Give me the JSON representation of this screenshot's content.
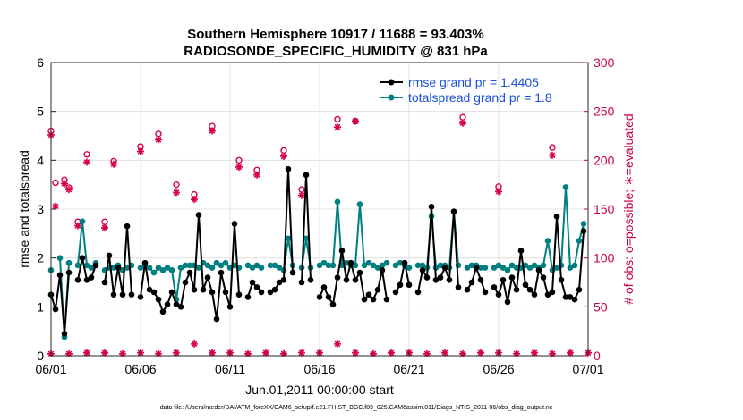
{
  "chart_data": {
    "type": "line",
    "title": "Southern Hemisphere 10917 / 11688 = 93.403%",
    "subtitle": "RADIOSONDE_SPECIFIC_HUMIDITY @ 831 hPa",
    "xlabel": "Jun.01,2011 00:00:00 start",
    "ylabel": "rmse and totalspread",
    "ylabel_right": "# of obs: o=possible; ∗=evaluated",
    "footer": "data file: /Users/raeder/DAI/ATM_forcXX/CAM6_setup/f.e21.FHIST_BGC.f09_025.CAM6assim.011/Diags_NTrS_2011-06/obs_diag_output.nc",
    "xlim": [
      0,
      30
    ],
    "ylim": [
      0,
      6
    ],
    "ylim_right": [
      0,
      300
    ],
    "x_ticks": [
      0,
      5,
      10,
      15,
      20,
      25,
      30
    ],
    "x_tick_labels": [
      "06/01",
      "06/06",
      "06/11",
      "06/16",
      "06/21",
      "06/26",
      "07/01"
    ],
    "y_ticks": [
      "0",
      "1",
      "2",
      "3",
      "4",
      "5",
      "6"
    ],
    "y_ticks_right": [
      "0",
      "50",
      "100",
      "150",
      "200",
      "250",
      "300"
    ],
    "legend_position": "top-right",
    "colors": {
      "rmse": "#000000",
      "spread": "#007f80",
      "obs": "#d6004a",
      "legend_text": "#1a4fd6",
      "right_axis": "#cc0044"
    },
    "series": [
      {
        "name": "rmse grand pr = 1.4405",
        "axis": "left",
        "x": [
          0.0,
          0.25,
          0.5,
          0.75,
          1.0,
          1.25,
          1.5,
          1.75,
          2.0,
          2.25,
          2.5,
          2.75,
          3.0,
          3.25,
          3.5,
          3.75,
          4.0,
          4.25,
          4.5,
          4.75,
          5.0,
          5.25,
          5.5,
          5.75,
          6.0,
          6.25,
          6.5,
          6.75,
          7.0,
          7.25,
          7.5,
          7.75,
          8.0,
          8.25,
          8.5,
          8.75,
          9.0,
          9.25,
          9.5,
          9.75,
          10.0,
          10.25,
          10.5,
          10.75,
          11.0,
          11.25,
          11.5,
          11.75,
          12.0,
          12.25,
          12.5,
          12.75,
          13.0,
          13.25,
          13.5,
          13.75,
          14.0,
          14.25,
          14.5,
          14.75,
          15.0,
          15.25,
          15.5,
          15.75,
          16.0,
          16.25,
          16.5,
          16.75,
          17.0,
          17.25,
          17.5,
          17.75,
          18.0,
          18.25,
          18.5,
          18.75,
          19.0,
          19.25,
          19.5,
          19.75,
          20.0,
          20.25,
          20.5,
          20.75,
          21.0,
          21.25,
          21.5,
          21.75,
          22.0,
          22.25,
          22.5,
          22.75,
          23.0,
          23.25,
          23.5,
          23.75,
          24.0,
          24.25,
          24.5,
          24.75,
          25.0,
          25.25,
          25.5,
          25.75,
          26.0,
          26.25,
          26.5,
          26.75,
          27.0,
          27.25,
          27.5,
          27.75,
          28.0,
          28.25,
          28.5,
          28.75,
          29.0,
          29.25,
          29.5,
          29.75
        ],
        "values": [
          1.25,
          0.95,
          1.65,
          0.45,
          1.7,
          null,
          1.55,
          2.0,
          1.55,
          1.6,
          1.85,
          null,
          1.5,
          2.05,
          1.25,
          1.8,
          1.25,
          2.65,
          1.25,
          null,
          1.2,
          1.9,
          1.35,
          1.3,
          1.15,
          0.9,
          1.05,
          1.3,
          1.05,
          1.0,
          1.5,
          1.7,
          1.35,
          2.88,
          1.35,
          1.6,
          1.3,
          0.75,
          1.7,
          1.3,
          1.0,
          2.7,
          1.25,
          null,
          1.2,
          1.5,
          1.4,
          1.3,
          null,
          1.3,
          1.35,
          1.5,
          1.55,
          3.82,
          1.7,
          null,
          1.5,
          3.7,
          1.55,
          null,
          1.2,
          1.4,
          1.2,
          1.05,
          1.6,
          2.15,
          1.55,
          1.9,
          1.55,
          1.7,
          1.15,
          1.25,
          1.15,
          1.35,
          1.75,
          1.15,
          null,
          1.3,
          1.45,
          1.9,
          1.45,
          null,
          1.3,
          1.75,
          1.6,
          3.05,
          1.55,
          1.6,
          1.8,
          1.55,
          2.95,
          1.4,
          null,
          1.35,
          1.5,
          1.8,
          1.55,
          1.3,
          null,
          1.4,
          1.25,
          1.55,
          1.1,
          1.6,
          1.35,
          2.15,
          1.45,
          1.35,
          1.25,
          1.75,
          1.6,
          1.25,
          1.3,
          2.85,
          1.55,
          1.2,
          1.2,
          1.15,
          1.35,
          2.55
        ]
      },
      {
        "name": "totalspread grand pr = 1.8",
        "axis": "left",
        "x": [
          0.0,
          0.25,
          0.5,
          0.75,
          1.0,
          1.25,
          1.5,
          1.75,
          2.0,
          2.25,
          2.5,
          2.75,
          3.0,
          3.25,
          3.5,
          3.75,
          4.0,
          4.25,
          4.5,
          4.75,
          5.0,
          5.25,
          5.5,
          5.75,
          6.0,
          6.25,
          6.5,
          6.75,
          7.0,
          7.25,
          7.5,
          7.75,
          8.0,
          8.25,
          8.5,
          8.75,
          9.0,
          9.25,
          9.5,
          9.75,
          10.0,
          10.25,
          10.5,
          10.75,
          11.0,
          11.25,
          11.5,
          11.75,
          12.0,
          12.25,
          12.5,
          12.75,
          13.0,
          13.25,
          13.5,
          13.75,
          14.0,
          14.25,
          14.5,
          14.75,
          15.0,
          15.25,
          15.5,
          15.75,
          16.0,
          16.25,
          16.5,
          16.75,
          17.0,
          17.25,
          17.5,
          17.75,
          18.0,
          18.25,
          18.5,
          18.75,
          19.0,
          19.25,
          19.5,
          19.75,
          20.0,
          20.25,
          20.5,
          20.75,
          21.0,
          21.25,
          21.5,
          21.75,
          22.0,
          22.25,
          22.5,
          22.75,
          23.0,
          23.25,
          23.5,
          23.75,
          24.0,
          24.25,
          24.5,
          24.75,
          25.0,
          25.25,
          25.5,
          25.75,
          26.0,
          26.25,
          26.5,
          26.75,
          27.0,
          27.25,
          27.5,
          27.75,
          28.0,
          28.25,
          28.5,
          28.75,
          29.0,
          29.25,
          29.5,
          29.75
        ],
        "values": [
          1.75,
          null,
          2.0,
          0.38,
          1.9,
          null,
          1.85,
          2.75,
          1.85,
          1.8,
          1.9,
          null,
          1.75,
          1.8,
          1.8,
          1.85,
          1.75,
          1.8,
          1.85,
          null,
          1.8,
          1.85,
          1.8,
          1.7,
          1.8,
          1.75,
          1.8,
          1.75,
          1.15,
          1.8,
          1.85,
          1.85,
          1.85,
          1.8,
          1.9,
          1.85,
          1.8,
          1.9,
          1.85,
          1.9,
          1.8,
          1.85,
          1.8,
          null,
          1.85,
          1.8,
          1.85,
          1.8,
          null,
          1.85,
          1.85,
          1.8,
          1.75,
          2.4,
          1.85,
          null,
          1.8,
          2.4,
          1.8,
          null,
          1.85,
          1.9,
          1.85,
          1.85,
          3.15,
          1.85,
          1.9,
          1.85,
          1.85,
          3.1,
          1.85,
          1.9,
          1.85,
          1.8,
          1.85,
          1.9,
          null,
          1.85,
          1.9,
          1.85,
          1.8,
          null,
          1.85,
          1.85,
          1.8,
          2.85,
          1.8,
          1.85,
          1.85,
          1.8,
          2.95,
          1.85,
          null,
          1.8,
          1.85,
          1.85,
          1.8,
          1.8,
          null,
          1.8,
          1.85,
          1.8,
          1.75,
          1.85,
          1.8,
          1.8,
          1.85,
          1.8,
          1.85,
          1.8,
          1.85,
          2.35,
          1.75,
          1.8,
          1.85,
          3.45,
          1.8,
          1.85,
          2.35,
          2.7
        ]
      },
      {
        "name": "# of obs possible",
        "axis": "right",
        "marker": "o",
        "x": [
          0.0,
          0.25,
          0.5,
          0.75,
          1.0,
          1.25,
          1.5,
          1.75,
          2.0,
          2.25,
          2.5,
          2.75,
          3.0,
          3.25,
          3.5,
          3.75,
          4.0,
          4.25,
          4.5,
          4.75,
          5.0,
          5.25,
          5.5,
          5.75,
          6.0,
          6.25,
          6.5,
          6.75,
          7.0,
          7.25,
          7.5,
          7.75,
          8.0,
          8.25,
          8.5,
          8.75,
          9.0,
          9.25,
          9.5,
          9.75,
          10.0,
          10.25,
          10.5,
          10.75,
          11.0,
          11.25,
          11.5,
          11.75,
          12.0,
          12.25,
          12.5,
          12.75,
          13.0,
          13.25,
          13.5,
          13.75,
          14.0,
          14.25,
          14.5,
          14.75,
          15.0,
          15.25,
          15.5,
          15.75,
          16.0,
          16.25,
          16.5,
          16.75,
          17.0,
          17.25,
          17.5,
          17.75,
          18.0,
          18.25,
          18.5,
          18.75,
          19.0,
          19.25,
          19.5,
          19.75,
          20.0,
          20.25,
          20.5,
          20.75,
          21.0,
          21.25,
          21.5,
          21.75,
          22.0,
          22.25,
          22.5,
          22.75,
          23.0,
          23.25,
          23.5,
          23.75,
          24.0,
          24.25,
          24.5,
          24.75,
          25.0,
          25.25,
          25.5,
          25.75,
          26.0,
          26.25,
          26.5,
          26.75,
          27.0,
          27.25,
          27.5,
          27.75,
          28.0,
          28.25,
          28.5,
          28.75,
          29.0,
          29.25,
          29.5,
          29.75
        ],
        "values": [
          230,
          177,
          null,
          180,
          172,
          null,
          137,
          null,
          206,
          null,
          null,
          null,
          137,
          null,
          199,
          null,
          null,
          null,
          null,
          null,
          214,
          null,
          null,
          null,
          227,
          null,
          null,
          null,
          175,
          null,
          null,
          null,
          165,
          null,
          null,
          null,
          235,
          null,
          null,
          null,
          null,
          null,
          200,
          null,
          null,
          null,
          190,
          null,
          null,
          null,
          null,
          null,
          210,
          null,
          null,
          null,
          170,
          null,
          null,
          null,
          null,
          null,
          null,
          null,
          242,
          null,
          null,
          null,
          240,
          null,
          null,
          null,
          null,
          null,
          null,
          null,
          null,
          null,
          null,
          null,
          null,
          null,
          null,
          null,
          null,
          null,
          null,
          null,
          null,
          null,
          null,
          null,
          244,
          null,
          null,
          null,
          null,
          null,
          null,
          null,
          173,
          null,
          null,
          null,
          null,
          null,
          null,
          null,
          null,
          null,
          null,
          null,
          213,
          null,
          null,
          null,
          null,
          null,
          null,
          null
        ]
      },
      {
        "name": "# of obs evaluated",
        "axis": "right",
        "marker": "*",
        "x": [
          0.0,
          0.25,
          0.5,
          0.75,
          1.0,
          1.25,
          1.5,
          1.75,
          2.0,
          2.25,
          2.5,
          2.75,
          3.0,
          3.25,
          3.5,
          3.75,
          4.0,
          4.25,
          4.5,
          4.75,
          5.0,
          5.25,
          5.5,
          5.75,
          6.0,
          6.25,
          6.5,
          6.75,
          7.0,
          7.25,
          7.5,
          7.75,
          8.0,
          8.25,
          8.5,
          8.75,
          9.0,
          9.25,
          9.5,
          9.75,
          10.0,
          10.25,
          10.5,
          10.75,
          11.0,
          11.25,
          11.5,
          11.75,
          12.0,
          12.25,
          12.5,
          12.75,
          13.0,
          13.25,
          13.5,
          13.75,
          14.0,
          14.25,
          14.5,
          14.75,
          15.0,
          15.25,
          15.5,
          15.75,
          16.0,
          16.25,
          16.5,
          16.75,
          17.0,
          17.25,
          17.5,
          17.75,
          18.0,
          18.25,
          18.5,
          18.75,
          19.0,
          19.25,
          19.5,
          19.75,
          20.0,
          20.25,
          20.5,
          20.75,
          21.0,
          21.25,
          21.5,
          21.75,
          22.0,
          22.25,
          22.5,
          22.75,
          23.0,
          23.25,
          23.5,
          23.75,
          24.0,
          24.25,
          24.5,
          24.75,
          25.0,
          25.25,
          25.5,
          25.75,
          26.0,
          26.25,
          26.5,
          26.75,
          27.0,
          27.25,
          27.5,
          27.75,
          28.0,
          28.25,
          28.5,
          28.75,
          29.0,
          29.25,
          29.5,
          29.75
        ],
        "values": [
          226,
          153,
          null,
          176,
          170,
          null,
          133,
          null,
          198,
          null,
          null,
          null,
          131,
          null,
          196,
          null,
          null,
          null,
          null,
          null,
          209,
          null,
          null,
          null,
          221,
          null,
          null,
          null,
          167,
          null,
          null,
          null,
          160,
          null,
          null,
          null,
          230,
          null,
          null,
          null,
          null,
          null,
          193,
          null,
          null,
          null,
          185,
          null,
          null,
          null,
          null,
          null,
          204,
          null,
          null,
          null,
          164,
          null,
          null,
          null,
          null,
          null,
          null,
          null,
          234,
          null,
          null,
          null,
          240,
          null,
          null,
          null,
          null,
          null,
          null,
          null,
          null,
          null,
          null,
          null,
          null,
          null,
          null,
          null,
          null,
          null,
          null,
          null,
          null,
          null,
          null,
          null,
          238,
          null,
          null,
          null,
          null,
          null,
          null,
          null,
          168,
          null,
          null,
          null,
          null,
          null,
          null,
          null,
          null,
          null,
          null,
          null,
          205,
          null,
          null,
          null,
          null,
          null,
          null,
          null
        ]
      },
      {
        "name": "# of obs near zero",
        "axis": "right",
        "marker": "*",
        "x": [
          0,
          1,
          2,
          3,
          4,
          5,
          6,
          7,
          8,
          9,
          10,
          11,
          12,
          13,
          14,
          15,
          16,
          17,
          18,
          19,
          20,
          21,
          22,
          23,
          24,
          25,
          26,
          27,
          28,
          29,
          30
        ],
        "values": [
          2,
          2,
          3,
          3,
          2,
          3,
          2,
          3,
          12,
          3,
          3,
          2,
          3,
          2,
          3,
          3,
          12,
          3,
          2,
          3,
          3,
          2,
          3,
          2,
          3,
          3,
          2,
          3,
          2,
          3,
          3
        ]
      }
    ]
  }
}
